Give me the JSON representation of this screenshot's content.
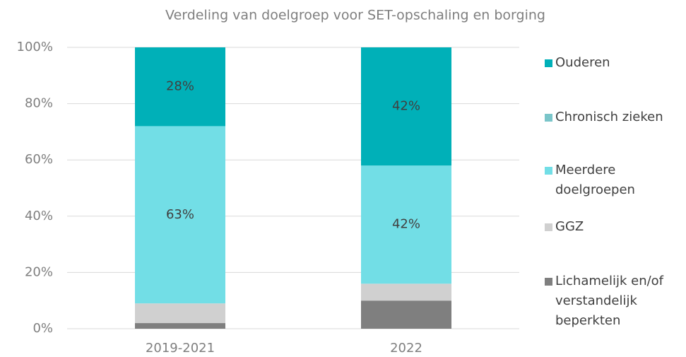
{
  "chart_data": {
    "type": "stacked_bar",
    "title": "Verdeling van doelgroep voor SET-opschaling en borging",
    "categories": [
      "2019-2021",
      "2022"
    ],
    "series": [
      {
        "name": "Lichamelijk en/of verstandelijk beperkten",
        "color": "#7f7f7f",
        "values": [
          2,
          10
        ],
        "value_labels": [
          null,
          null
        ]
      },
      {
        "name": "GGZ",
        "color": "#d0d0d0",
        "values": [
          7,
          6
        ],
        "value_labels": [
          null,
          null
        ]
      },
      {
        "name": "Meerdere doelgroepen",
        "color": "#72dee6",
        "values": [
          63,
          42
        ],
        "value_labels": [
          "63%",
          "42%"
        ]
      },
      {
        "name": "Chronisch zieken",
        "color": "#7ac5c9",
        "values": [
          0,
          0
        ],
        "value_labels": [
          null,
          null
        ]
      },
      {
        "name": "Ouderen",
        "color": "#00b0b8",
        "values": [
          28,
          42
        ],
        "value_labels": [
          "28%",
          "42%"
        ]
      }
    ],
    "ylim": [
      0,
      100
    ],
    "yticks": [
      {
        "value": 0,
        "label": "0%"
      },
      {
        "value": 20,
        "label": "20%"
      },
      {
        "value": 40,
        "label": "40%"
      },
      {
        "value": 60,
        "label": "60%"
      },
      {
        "value": 80,
        "label": "80%"
      },
      {
        "value": 100,
        "label": "100%"
      }
    ],
    "grid": true,
    "legend": "right"
  }
}
